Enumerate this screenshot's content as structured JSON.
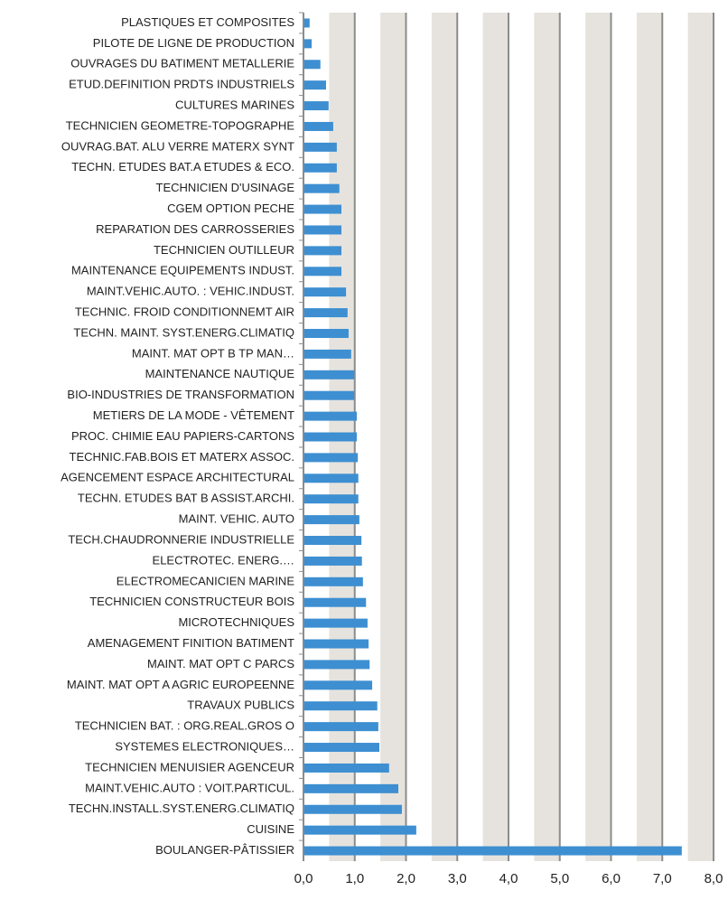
{
  "chart_data": {
    "type": "barh",
    "categories": [
      "PLASTIQUES ET COMPOSITES",
      "PILOTE DE LIGNE DE PRODUCTION",
      "OUVRAGES DU BATIMENT METALLERIE",
      "ETUD.DEFINITION PRDTS INDUSTRIELS",
      "CULTURES MARINES",
      "TECHNICIEN GEOMETRE-TOPOGRAPHE",
      "OUVRAG.BAT. ALU VERRE MATERX SYNT",
      "TECHN. ETUDES BAT.A ETUDES & ECO.",
      "TECHNICIEN D'USINAGE",
      "CGEM OPTION PECHE",
      "REPARATION DES CARROSSERIES",
      "TECHNICIEN OUTILLEUR",
      "MAINTENANCE EQUIPEMENTS INDUST.",
      "MAINT.VEHIC.AUTO. : VEHIC.INDUST.",
      "TECHNIC. FROID CONDITIONNEMT AIR",
      "TECHN. MAINT. SYST.ENERG.CLIMATIQ",
      "MAINT. MAT OPT B TP MAN…",
      "MAINTENANCE NAUTIQUE",
      "BIO-INDUSTRIES DE TRANSFORMATION",
      "METIERS DE LA MODE - VÊTEMENT",
      "PROC. CHIMIE EAU PAPIERS-CARTONS",
      "TECHNIC.FAB.BOIS ET MATERX ASSOC.",
      "AGENCEMENT ESPACE ARCHITECTURAL",
      "TECHN. ETUDES BAT B ASSIST.ARCHI.",
      "MAINT. VEHIC. AUTO",
      "TECH.CHAUDRONNERIE INDUSTRIELLE",
      "ELECTROTEC. ENERG.…",
      "ELECTROMECANICIEN MARINE",
      "TECHNICIEN CONSTRUCTEUR BOIS",
      "MICROTECHNIQUES",
      "AMENAGEMENT FINITION BATIMENT",
      "MAINT. MAT OPT C PARCS",
      "MAINT. MAT OPT A AGRIC EUROPEENNE",
      "TRAVAUX PUBLICS",
      "TECHNICIEN BAT. : ORG.REAL.GROS O",
      "SYSTEMES ELECTRONIQUES…",
      "TECHNICIEN MENUISIER AGENCEUR",
      "MAINT.VEHIC.AUTO : VOIT.PARTICUL.",
      "TECHN.INSTALL.SYST.ENERG.CLIMATIQ",
      "CUISINE",
      "BOULANGER-PÂTISSIER"
    ],
    "values": [
      0.12,
      0.16,
      0.33,
      0.44,
      0.49,
      0.58,
      0.65,
      0.65,
      0.7,
      0.74,
      0.74,
      0.74,
      0.74,
      0.83,
      0.86,
      0.88,
      0.93,
      0.99,
      0.99,
      1.04,
      1.04,
      1.06,
      1.07,
      1.07,
      1.09,
      1.13,
      1.14,
      1.16,
      1.22,
      1.25,
      1.27,
      1.29,
      1.34,
      1.44,
      1.46,
      1.48,
      1.67,
      1.85,
      1.92,
      2.2,
      7.38
    ],
    "color": "#3d8fd1",
    "xlim": [
      0,
      8
    ],
    "xticks": [
      {
        "value": 0,
        "label": "0,0"
      },
      {
        "value": 1,
        "label": "1,0"
      },
      {
        "value": 2,
        "label": "2,0"
      },
      {
        "value": 3,
        "label": "3,0"
      },
      {
        "value": 4,
        "label": "4,0"
      },
      {
        "value": 5,
        "label": "5,0"
      },
      {
        "value": 6,
        "label": "6,0"
      },
      {
        "value": 7,
        "label": "7,0"
      },
      {
        "value": 8,
        "label": "8,0"
      }
    ],
    "grid": true
  }
}
